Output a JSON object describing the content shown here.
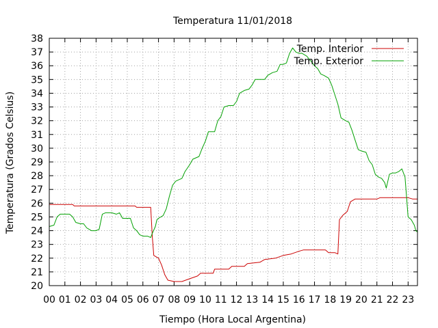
{
  "chart_data": {
    "type": "line",
    "title": "Temperatura 11/01/2018",
    "xlabel": "Tiempo (Hora Local Argentina)",
    "ylabel": "Temperatura (Grados Celsius)",
    "xlim": [
      0,
      23.6
    ],
    "ylim": [
      20,
      38
    ],
    "grid": true,
    "legend_position": "top-right",
    "x_ticks": [
      {
        "value": 0,
        "label": "00"
      },
      {
        "value": 1,
        "label": "01"
      },
      {
        "value": 2,
        "label": "02"
      },
      {
        "value": 3,
        "label": "03"
      },
      {
        "value": 4,
        "label": "04"
      },
      {
        "value": 5,
        "label": "05"
      },
      {
        "value": 6,
        "label": "06"
      },
      {
        "value": 7,
        "label": "07"
      },
      {
        "value": 8,
        "label": "08"
      },
      {
        "value": 9,
        "label": "09"
      },
      {
        "value": 10,
        "label": "10"
      },
      {
        "value": 11,
        "label": "11"
      },
      {
        "value": 12,
        "label": "12"
      },
      {
        "value": 13,
        "label": "13"
      },
      {
        "value": 14,
        "label": "14"
      },
      {
        "value": 15,
        "label": "15"
      },
      {
        "value": 16,
        "label": "16"
      },
      {
        "value": 17,
        "label": "17"
      },
      {
        "value": 18,
        "label": "18"
      },
      {
        "value": 19,
        "label": "19"
      },
      {
        "value": 20,
        "label": "20"
      },
      {
        "value": 21,
        "label": "21"
      },
      {
        "value": 22,
        "label": "22"
      },
      {
        "value": 23,
        "label": "23"
      }
    ],
    "y_ticks": [
      {
        "value": 20,
        "label": "20"
      },
      {
        "value": 21,
        "label": "21"
      },
      {
        "value": 22,
        "label": "22"
      },
      {
        "value": 23,
        "label": "23"
      },
      {
        "value": 24,
        "label": "24"
      },
      {
        "value": 25,
        "label": "25"
      },
      {
        "value": 26,
        "label": "26"
      },
      {
        "value": 27,
        "label": "27"
      },
      {
        "value": 28,
        "label": "28"
      },
      {
        "value": 29,
        "label": "29"
      },
      {
        "value": 30,
        "label": "30"
      },
      {
        "value": 31,
        "label": "31"
      },
      {
        "value": 32,
        "label": "32"
      },
      {
        "value": 33,
        "label": "33"
      },
      {
        "value": 34,
        "label": "34"
      },
      {
        "value": 35,
        "label": "35"
      },
      {
        "value": 36,
        "label": "36"
      },
      {
        "value": 37,
        "label": "37"
      },
      {
        "value": 38,
        "label": "38"
      }
    ],
    "series": [
      {
        "name": "Temp. Interior",
        "color": "#cc0000",
        "points": [
          [
            0,
            25.9
          ],
          [
            1.5,
            25.9
          ],
          [
            1.6,
            25.8
          ],
          [
            5.5,
            25.8
          ],
          [
            5.6,
            25.7
          ],
          [
            6.5,
            25.7
          ],
          [
            6.6,
            23.6
          ],
          [
            6.7,
            22.2
          ],
          [
            7.0,
            22.0
          ],
          [
            7.2,
            21.5
          ],
          [
            7.4,
            20.8
          ],
          [
            7.6,
            20.4
          ],
          [
            8.0,
            20.3
          ],
          [
            8.5,
            20.3
          ],
          [
            9.0,
            20.5
          ],
          [
            9.5,
            20.7
          ],
          [
            9.7,
            20.9
          ],
          [
            10.5,
            20.9
          ],
          [
            10.6,
            21.2
          ],
          [
            11.5,
            21.2
          ],
          [
            11.7,
            21.4
          ],
          [
            12.5,
            21.4
          ],
          [
            12.7,
            21.6
          ],
          [
            13.5,
            21.7
          ],
          [
            13.8,
            21.9
          ],
          [
            14.5,
            22.0
          ],
          [
            15.0,
            22.2
          ],
          [
            15.5,
            22.3
          ],
          [
            16.0,
            22.5
          ],
          [
            16.3,
            22.6
          ],
          [
            17.7,
            22.6
          ],
          [
            17.9,
            22.4
          ],
          [
            18.3,
            22.4
          ],
          [
            18.5,
            22.3
          ],
          [
            18.6,
            24.8
          ],
          [
            18.8,
            25.1
          ],
          [
            19.1,
            25.4
          ],
          [
            19.3,
            26.1
          ],
          [
            19.6,
            26.3
          ],
          [
            20.5,
            26.3
          ],
          [
            21.0,
            26.3
          ],
          [
            21.2,
            26.4
          ],
          [
            22.5,
            26.4
          ],
          [
            22.8,
            26.4
          ],
          [
            23.0,
            26.4
          ],
          [
            23.3,
            26.3
          ],
          [
            23.6,
            26.3
          ]
        ]
      },
      {
        "name": "Temp. Exterior",
        "color": "#00a000",
        "points": [
          [
            0,
            24.3
          ],
          [
            0.3,
            24.4
          ],
          [
            0.5,
            25.0
          ],
          [
            0.7,
            25.2
          ],
          [
            1.0,
            25.2
          ],
          [
            1.3,
            25.2
          ],
          [
            1.5,
            25.0
          ],
          [
            1.7,
            24.6
          ],
          [
            2.0,
            24.5
          ],
          [
            2.2,
            24.5
          ],
          [
            2.4,
            24.2
          ],
          [
            2.7,
            24.0
          ],
          [
            3.0,
            24.0
          ],
          [
            3.2,
            24.1
          ],
          [
            3.4,
            25.2
          ],
          [
            3.6,
            25.3
          ],
          [
            4.0,
            25.3
          ],
          [
            4.3,
            25.2
          ],
          [
            4.5,
            25.3
          ],
          [
            4.7,
            24.9
          ],
          [
            5.0,
            24.9
          ],
          [
            5.2,
            24.9
          ],
          [
            5.4,
            24.2
          ],
          [
            5.6,
            24.0
          ],
          [
            5.8,
            23.7
          ],
          [
            6.0,
            23.6
          ],
          [
            6.3,
            23.6
          ],
          [
            6.5,
            23.5
          ],
          [
            6.6,
            23.8
          ],
          [
            6.8,
            24.3
          ],
          [
            6.9,
            24.8
          ],
          [
            7.0,
            24.9
          ],
          [
            7.3,
            25.1
          ],
          [
            7.5,
            25.6
          ],
          [
            7.7,
            26.5
          ],
          [
            7.9,
            27.3
          ],
          [
            8.1,
            27.6
          ],
          [
            8.3,
            27.7
          ],
          [
            8.5,
            27.8
          ],
          [
            8.7,
            28.3
          ],
          [
            9.0,
            28.8
          ],
          [
            9.2,
            29.2
          ],
          [
            9.6,
            29.4
          ],
          [
            9.8,
            30.0
          ],
          [
            10.0,
            30.5
          ],
          [
            10.2,
            31.2
          ],
          [
            10.6,
            31.2
          ],
          [
            10.8,
            32.0
          ],
          [
            11.0,
            32.3
          ],
          [
            11.2,
            33.0
          ],
          [
            11.5,
            33.1
          ],
          [
            11.8,
            33.1
          ],
          [
            12.0,
            33.4
          ],
          [
            12.2,
            34.0
          ],
          [
            12.5,
            34.2
          ],
          [
            12.8,
            34.3
          ],
          [
            13.0,
            34.6
          ],
          [
            13.2,
            35.0
          ],
          [
            13.5,
            35.0
          ],
          [
            13.8,
            35.0
          ],
          [
            14.0,
            35.3
          ],
          [
            14.3,
            35.5
          ],
          [
            14.6,
            35.6
          ],
          [
            14.8,
            36.1
          ],
          [
            15.0,
            36.1
          ],
          [
            15.2,
            36.2
          ],
          [
            15.4,
            36.9
          ],
          [
            15.6,
            37.3
          ],
          [
            15.8,
            37.0
          ],
          [
            16.0,
            36.9
          ],
          [
            16.2,
            36.9
          ],
          [
            16.5,
            36.7
          ],
          [
            16.8,
            36.3
          ],
          [
            17.0,
            36.0
          ],
          [
            17.2,
            35.8
          ],
          [
            17.4,
            35.4
          ],
          [
            17.6,
            35.3
          ],
          [
            17.9,
            35.1
          ],
          [
            18.1,
            34.6
          ],
          [
            18.3,
            33.9
          ],
          [
            18.5,
            33.2
          ],
          [
            18.7,
            32.2
          ],
          [
            19.0,
            32.0
          ],
          [
            19.2,
            31.9
          ],
          [
            19.4,
            31.3
          ],
          [
            19.6,
            30.6
          ],
          [
            19.8,
            29.9
          ],
          [
            20.0,
            29.8
          ],
          [
            20.3,
            29.7
          ],
          [
            20.5,
            29.1
          ],
          [
            20.7,
            28.8
          ],
          [
            20.9,
            28.1
          ],
          [
            21.1,
            27.9
          ],
          [
            21.3,
            27.8
          ],
          [
            21.5,
            27.5
          ],
          [
            21.6,
            27.1
          ],
          [
            21.8,
            28.1
          ],
          [
            22.0,
            28.2
          ],
          [
            22.2,
            28.2
          ],
          [
            22.4,
            28.3
          ],
          [
            22.6,
            28.5
          ],
          [
            22.8,
            27.9
          ],
          [
            23.0,
            25.0
          ],
          [
            23.2,
            24.8
          ],
          [
            23.4,
            24.4
          ],
          [
            23.5,
            24.0
          ],
          [
            23.6,
            23.9
          ]
        ]
      }
    ]
  }
}
